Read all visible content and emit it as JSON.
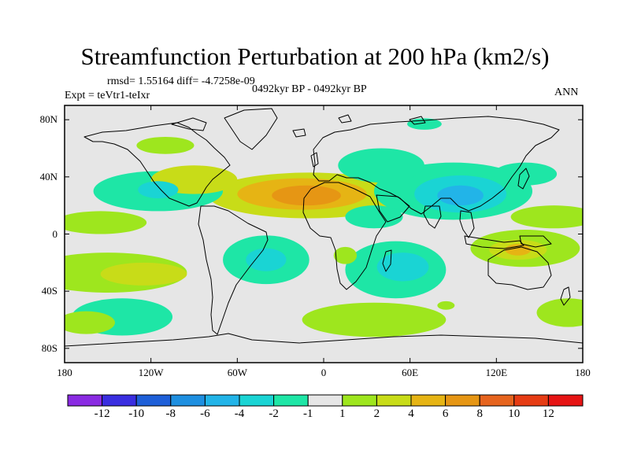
{
  "title": "Streamfunction Perturbation at 200 hPa (km2/s)",
  "stats": "rmsd= 1.55164 diff= -4.7258e-09",
  "experiment": "Expt = teVtr1-teIxr",
  "period": "0492kyr BP - 0492kyr BP",
  "season": "ANN",
  "map": {
    "projection": "cylindrical-equidistant",
    "lon_range": [
      -180,
      180
    ],
    "lat_range": [
      -90,
      90
    ],
    "background_color": "#e6e6e6",
    "x_ticks": [
      {
        "lon": -180,
        "label": "180"
      },
      {
        "lon": -120,
        "label": "120W"
      },
      {
        "lon": -60,
        "label": "60W"
      },
      {
        "lon": 0,
        "label": "0"
      },
      {
        "lon": 60,
        "label": "60E"
      },
      {
        "lon": 120,
        "label": "120E"
      },
      {
        "lon": 180,
        "label": "180"
      }
    ],
    "y_ticks": [
      {
        "lat": 80,
        "label": "80N"
      },
      {
        "lat": 40,
        "label": "40N"
      },
      {
        "lat": 0,
        "label": "0"
      },
      {
        "lat": -40,
        "label": "40S"
      },
      {
        "lat": -80,
        "label": "80S"
      }
    ]
  },
  "colorbar": {
    "colors": [
      "#8a2be2",
      "#3a2ee0",
      "#1e5fd8",
      "#1e8fe0",
      "#22b4e8",
      "#1ad4d4",
      "#1ee6a6",
      "#e6e6e6",
      "#9ee61e",
      "#c8dc18",
      "#e6b414",
      "#e69614",
      "#e6641e",
      "#e63c14",
      "#e61414"
    ],
    "labels": [
      "-12",
      "-10",
      "-8",
      "-6",
      "-4",
      "-2",
      "-1",
      "1",
      "2",
      "4",
      "6",
      "8",
      "10",
      "12"
    ]
  },
  "anomalies": [
    {
      "lon": -10,
      "lat": 27,
      "rx": 70,
      "ry": 16,
      "level": 2
    },
    {
      "lon": -15,
      "lat": 28,
      "rx": 45,
      "ry": 11,
      "level": 4
    },
    {
      "lon": -12,
      "lat": 27,
      "rx": 24,
      "ry": 7,
      "level": 6
    },
    {
      "lon": -90,
      "lat": 38,
      "rx": 30,
      "ry": 10,
      "level": 2
    },
    {
      "lon": -115,
      "lat": 30,
      "rx": 45,
      "ry": 14,
      "level": -1
    },
    {
      "lon": -115,
      "lat": 31,
      "rx": 14,
      "ry": 6,
      "level": -2
    },
    {
      "lon": 90,
      "lat": 30,
      "rx": 55,
      "ry": 20,
      "level": -1
    },
    {
      "lon": 95,
      "lat": 28,
      "rx": 32,
      "ry": 13,
      "level": -2
    },
    {
      "lon": 95,
      "lat": 27,
      "rx": 16,
      "ry": 7,
      "level": -4
    },
    {
      "lon": 40,
      "lat": 48,
      "rx": 30,
      "ry": 12,
      "level": -1
    },
    {
      "lon": 35,
      "lat": 12,
      "rx": 20,
      "ry": 8,
      "level": -1
    },
    {
      "lon": 140,
      "lat": 42,
      "rx": 22,
      "ry": 8,
      "level": -1
    },
    {
      "lon": 140,
      "lat": -10,
      "rx": 38,
      "ry": 13,
      "level": 1
    },
    {
      "lon": 135,
      "lat": -11,
      "rx": 20,
      "ry": 7,
      "level": 2
    },
    {
      "lon": 135,
      "lat": -11,
      "rx": 9,
      "ry": 4,
      "level": 4
    },
    {
      "lon": 160,
      "lat": 12,
      "rx": 30,
      "ry": 8,
      "level": 1
    },
    {
      "lon": -155,
      "lat": 8,
      "rx": 32,
      "ry": 8,
      "level": 1
    },
    {
      "lon": -150,
      "lat": -27,
      "rx": 55,
      "ry": 14,
      "level": 1
    },
    {
      "lon": -125,
      "lat": -28,
      "rx": 30,
      "ry": 8,
      "level": 2
    },
    {
      "lon": -140,
      "lat": -58,
      "rx": 35,
      "ry": 13,
      "level": -1
    },
    {
      "lon": -40,
      "lat": -18,
      "rx": 30,
      "ry": 17,
      "level": -1
    },
    {
      "lon": -40,
      "lat": -18,
      "rx": 14,
      "ry": 8,
      "level": -2
    },
    {
      "lon": 50,
      "lat": -25,
      "rx": 35,
      "ry": 20,
      "level": -1
    },
    {
      "lon": 55,
      "lat": -23,
      "rx": 18,
      "ry": 10,
      "level": -2
    },
    {
      "lon": 35,
      "lat": -60,
      "rx": 50,
      "ry": 12,
      "level": 1
    },
    {
      "lon": 15,
      "lat": -15,
      "rx": 8,
      "ry": 6,
      "level": 1
    },
    {
      "lon": 85,
      "lat": -50,
      "rx": 6,
      "ry": 3,
      "level": 1
    },
    {
      "lon": 170,
      "lat": -55,
      "rx": 22,
      "ry": 10,
      "level": 1
    },
    {
      "lon": 70,
      "lat": 77,
      "rx": 12,
      "ry": 4,
      "level": -1
    },
    {
      "lon": -165,
      "lat": -62,
      "rx": 20,
      "ry": 8,
      "level": 1
    },
    {
      "lon": -110,
      "lat": 62,
      "rx": 20,
      "ry": 6,
      "level": 1
    }
  ]
}
